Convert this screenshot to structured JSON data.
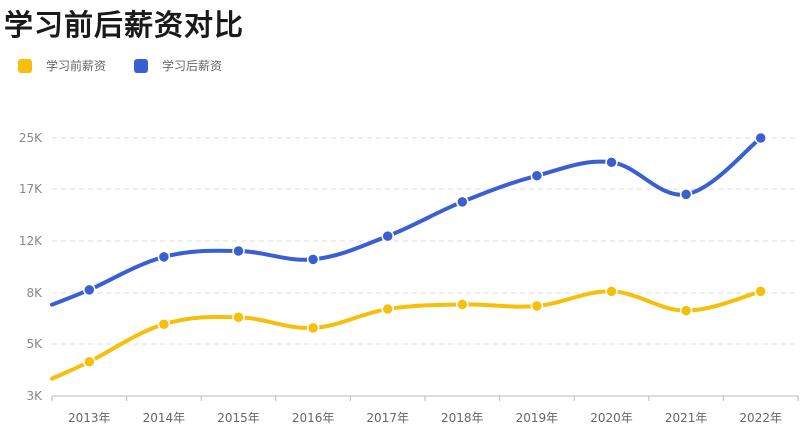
{
  "title": "学习前后薪资对比",
  "chart_data": {
    "type": "line",
    "title": "学习前后薪资对比",
    "categories": [
      "2013年",
      "2014年",
      "2015年",
      "2016年",
      "2017年",
      "2018年",
      "2019年",
      "2020年",
      "2021年",
      "2022年"
    ],
    "y_ticks": [
      "3K",
      "5K",
      "8K",
      "12K",
      "17K",
      "25K"
    ],
    "y_tick_values": [
      3000,
      5000,
      8000,
      12000,
      17000,
      25000
    ],
    "y_scale": "log",
    "ylim": [
      3000,
      25000
    ],
    "grid": true,
    "legend_position": "top-left",
    "series": [
      {
        "name": "学习前薪资",
        "color": "#F5BF0A",
        "values": [
          4200,
          6000,
          6400,
          5800,
          6900,
          7200,
          7100,
          8100,
          6800,
          8100
        ]
      },
      {
        "name": "学习后薪资",
        "color": "#3A5FD0",
        "values": [
          8200,
          10600,
          11100,
          10400,
          12400,
          15600,
          18800,
          20800,
          16400,
          25000
        ]
      }
    ]
  }
}
